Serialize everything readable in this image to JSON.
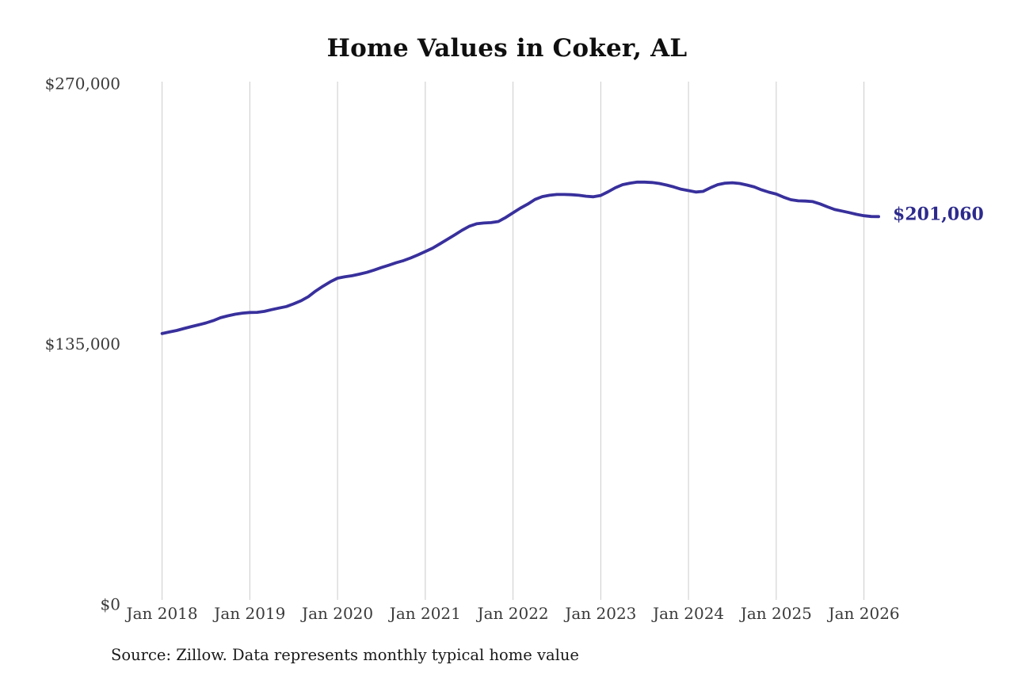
{
  "title": "Home Values in Coker, AL",
  "source_note": "Source: Zillow. Data represents monthly typical home value",
  "colors": {
    "background": "#ffffff",
    "line": "#38309c",
    "end_label": "#2d2a8c",
    "gridline": "#cbcbcb",
    "axis_text": "#3a3a3a",
    "title_text": "#0f0f0f",
    "source_text": "#1a1a1a"
  },
  "chart_data": {
    "type": "line",
    "title": "Home Values in Coker, AL",
    "xlabel": "",
    "ylabel": "",
    "ylim": [
      0,
      270000
    ],
    "grid": "vertical-only",
    "legend": "none",
    "y_ticks": [
      {
        "value": 0,
        "label": "$0"
      },
      {
        "value": 135000,
        "label": "$135,000"
      },
      {
        "value": 270000,
        "label": "$270,000"
      }
    ],
    "x_ticks": [
      {
        "month_index": 0,
        "label": "Jan 2018"
      },
      {
        "month_index": 12,
        "label": "Jan 2019"
      },
      {
        "month_index": 24,
        "label": "Jan 2020"
      },
      {
        "month_index": 36,
        "label": "Jan 2021"
      },
      {
        "month_index": 48,
        "label": "Jan 2022"
      },
      {
        "month_index": 60,
        "label": "Jan 2023"
      },
      {
        "month_index": 72,
        "label": "Jan 2024"
      },
      {
        "month_index": 84,
        "label": "Jan 2025"
      },
      {
        "month_index": 96,
        "label": "Jan 2026"
      }
    ],
    "end_label": "$201,060",
    "last_value": 201060,
    "series": [
      {
        "name": "Monthly typical home value",
        "unit": "USD",
        "x": [
          "2018-01",
          "2018-02",
          "2018-03",
          "2018-04",
          "2018-05",
          "2018-06",
          "2018-07",
          "2018-08",
          "2018-09",
          "2018-10",
          "2018-11",
          "2018-12",
          "2019-01",
          "2019-02",
          "2019-03",
          "2019-04",
          "2019-05",
          "2019-06",
          "2019-07",
          "2019-08",
          "2019-09",
          "2019-10",
          "2019-11",
          "2019-12",
          "2020-01",
          "2020-02",
          "2020-03",
          "2020-04",
          "2020-05",
          "2020-06",
          "2020-07",
          "2020-08",
          "2020-09",
          "2020-10",
          "2020-11",
          "2020-12",
          "2021-01",
          "2021-02",
          "2021-03",
          "2021-04",
          "2021-05",
          "2021-06",
          "2021-07",
          "2021-08",
          "2021-09",
          "2021-10",
          "2021-11",
          "2021-12",
          "2022-01",
          "2022-02",
          "2022-03",
          "2022-04",
          "2022-05",
          "2022-06",
          "2022-07",
          "2022-08",
          "2022-09",
          "2022-10",
          "2022-11",
          "2022-12",
          "2023-01",
          "2023-02",
          "2023-03",
          "2023-04",
          "2023-05",
          "2023-06",
          "2023-07",
          "2023-08",
          "2023-09",
          "2023-10",
          "2023-11",
          "2023-12",
          "2024-01",
          "2024-02",
          "2024-03",
          "2024-04",
          "2024-05",
          "2024-06",
          "2024-07",
          "2024-08",
          "2024-09",
          "2024-10",
          "2024-11",
          "2024-12",
          "2025-01",
          "2025-02",
          "2025-03",
          "2025-04",
          "2025-05",
          "2025-06",
          "2025-07",
          "2025-08",
          "2025-09",
          "2025-10",
          "2025-11",
          "2025-12",
          "2026-01",
          "2026-02",
          "2026-03"
        ],
        "values": [
          140400,
          141200,
          142000,
          143000,
          144000,
          144900,
          145900,
          147100,
          148600,
          149600,
          150400,
          151000,
          151300,
          151400,
          151900,
          152800,
          153600,
          154400,
          155800,
          157400,
          159500,
          162400,
          164900,
          167200,
          169100,
          169800,
          170400,
          171200,
          172100,
          173300,
          174600,
          175800,
          177100,
          178200,
          179600,
          181200,
          182900,
          184700,
          186900,
          189200,
          191500,
          193900,
          196000,
          197300,
          197700,
          197900,
          198500,
          200600,
          203000,
          205400,
          207500,
          209900,
          211400,
          212100,
          212500,
          212500,
          212400,
          212100,
          211600,
          211300,
          212000,
          213900,
          216000,
          217600,
          218400,
          218900,
          218900,
          218700,
          218200,
          217400,
          216400,
          215200,
          214500,
          213800,
          214100,
          216000,
          217600,
          218400,
          218600,
          218200,
          217400,
          216400,
          214900,
          213700,
          212700,
          211100,
          209800,
          209200,
          209100,
          208800,
          207600,
          206100,
          204700,
          203900,
          203100,
          202200,
          201500,
          201100,
          201060
        ]
      }
    ]
  }
}
